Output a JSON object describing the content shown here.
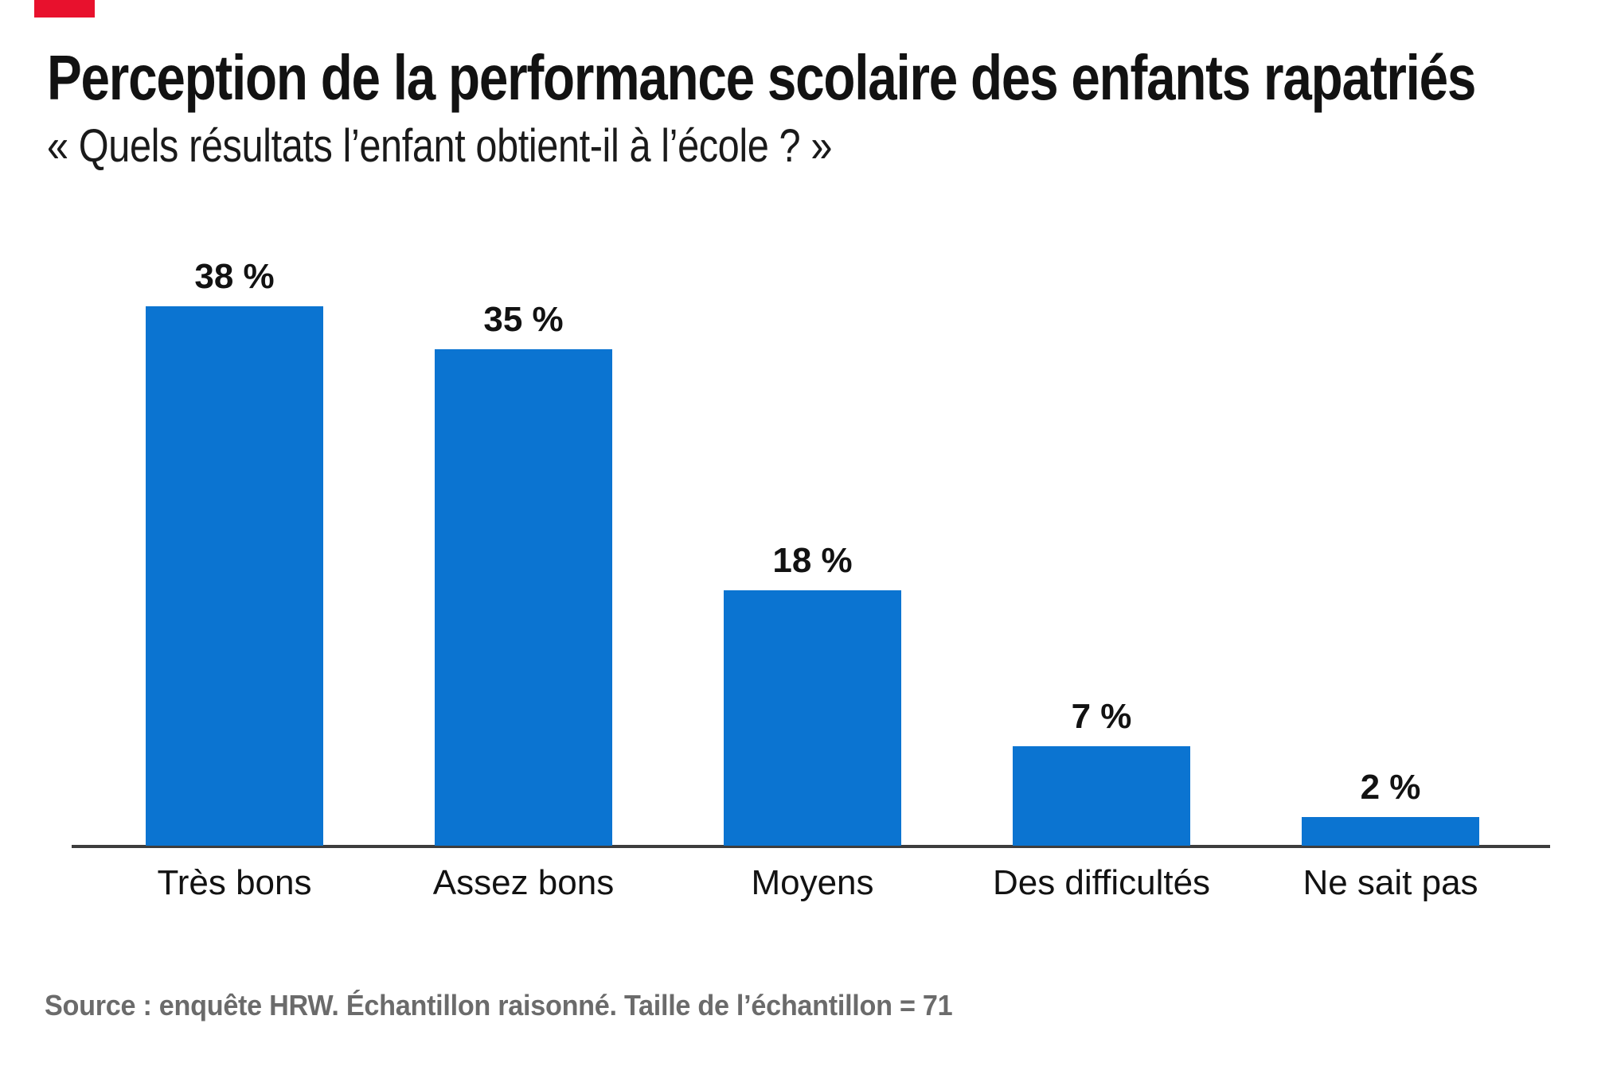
{
  "header": {
    "title": "Perception de la performance scolaire des enfants rapatriés",
    "subtitle": "« Quels résultats l’enfant obtient-il à l’école ? »"
  },
  "chart_data": {
    "type": "bar",
    "categories": [
      "Très bons",
      "Assez bons",
      "Moyens",
      "Des difficultés",
      "Ne sait pas"
    ],
    "values": [
      38,
      35,
      18,
      7,
      2
    ],
    "value_labels": [
      "38 %",
      "35 %",
      "18 %",
      "7 %",
      "2 %"
    ],
    "unit": "%",
    "title": "Perception de la performance scolaire des enfants rapatriés",
    "xlabel": "",
    "ylabel": "",
    "ylim": [
      0,
      40
    ],
    "grid": false,
    "legend": false,
    "y_axis_shown": false,
    "bar_color": "#0b74d1",
    "axis_line_color": "#3d3d3d"
  },
  "footer": {
    "source": "Source : enquête HRW. Échantillon raisonné. Taille de l’échantillon = 71"
  },
  "colors": {
    "accent_blue": "#0b74d1",
    "brand_red": "#e8112d",
    "text": "#121212",
    "muted_gray": "#6b6b6b"
  }
}
